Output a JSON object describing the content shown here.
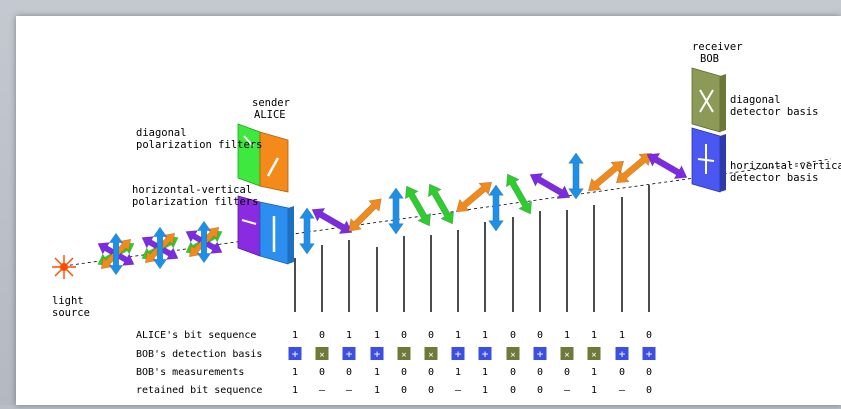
{
  "labels": {
    "receiver_line1": "receiver",
    "receiver_line2": "BOB",
    "sender_line1": "sender",
    "sender_line2": "ALICE",
    "diag_filters_line1": "diagonal",
    "diag_filters_line2": "polarization filters",
    "hv_filters_line1": "horizontal-vertical",
    "hv_filters_line2": "polarization filters",
    "diag_detector_line1": "diagonal",
    "diag_detector_line2": "detector basis",
    "hv_detector_line1": "horizontal-vertical",
    "hv_detector_line2": "detector basis",
    "light_line1": "light",
    "light_line2": "source"
  },
  "table": {
    "row_labels": {
      "alice_bits": "ALICE's bit sequence",
      "bob_basis": "BOB's detection basis",
      "bob_measurements": "BOB's measurements",
      "retained": "retained bit sequence"
    },
    "alice_bits": [
      "1",
      "0",
      "1",
      "1",
      "0",
      "0",
      "1",
      "1",
      "0",
      "0",
      "1",
      "1",
      "1",
      "0"
    ],
    "bob_basis": [
      "+",
      "x",
      "+",
      "+",
      "x",
      "x",
      "+",
      "+",
      "x",
      "+",
      "x",
      "x",
      "+",
      "+"
    ],
    "bob_measurements": [
      "1",
      "0",
      "0",
      "1",
      "0",
      "0",
      "1",
      "1",
      "0",
      "0",
      "0",
      "1",
      "0",
      "0"
    ],
    "retained": [
      "1",
      "–",
      "–",
      "1",
      "0",
      "0",
      "–",
      "1",
      "0",
      "0",
      "–",
      "1",
      "–",
      "0"
    ]
  },
  "colors": {
    "vertical_photon": "#1e8fe6",
    "diag_right_photon": "#f08a1c",
    "diag_left_photon": "#2ecc2e",
    "horizontal_photon": "#7b2be0",
    "plus_basis": "#3b4fe0",
    "cross_basis": "#6f7a3a",
    "light_source": "#ff4a00"
  },
  "icons": {
    "light_source": "sun-burst-icon",
    "plus_basis": "plus-basis-icon",
    "cross_basis": "cross-basis-icon"
  }
}
